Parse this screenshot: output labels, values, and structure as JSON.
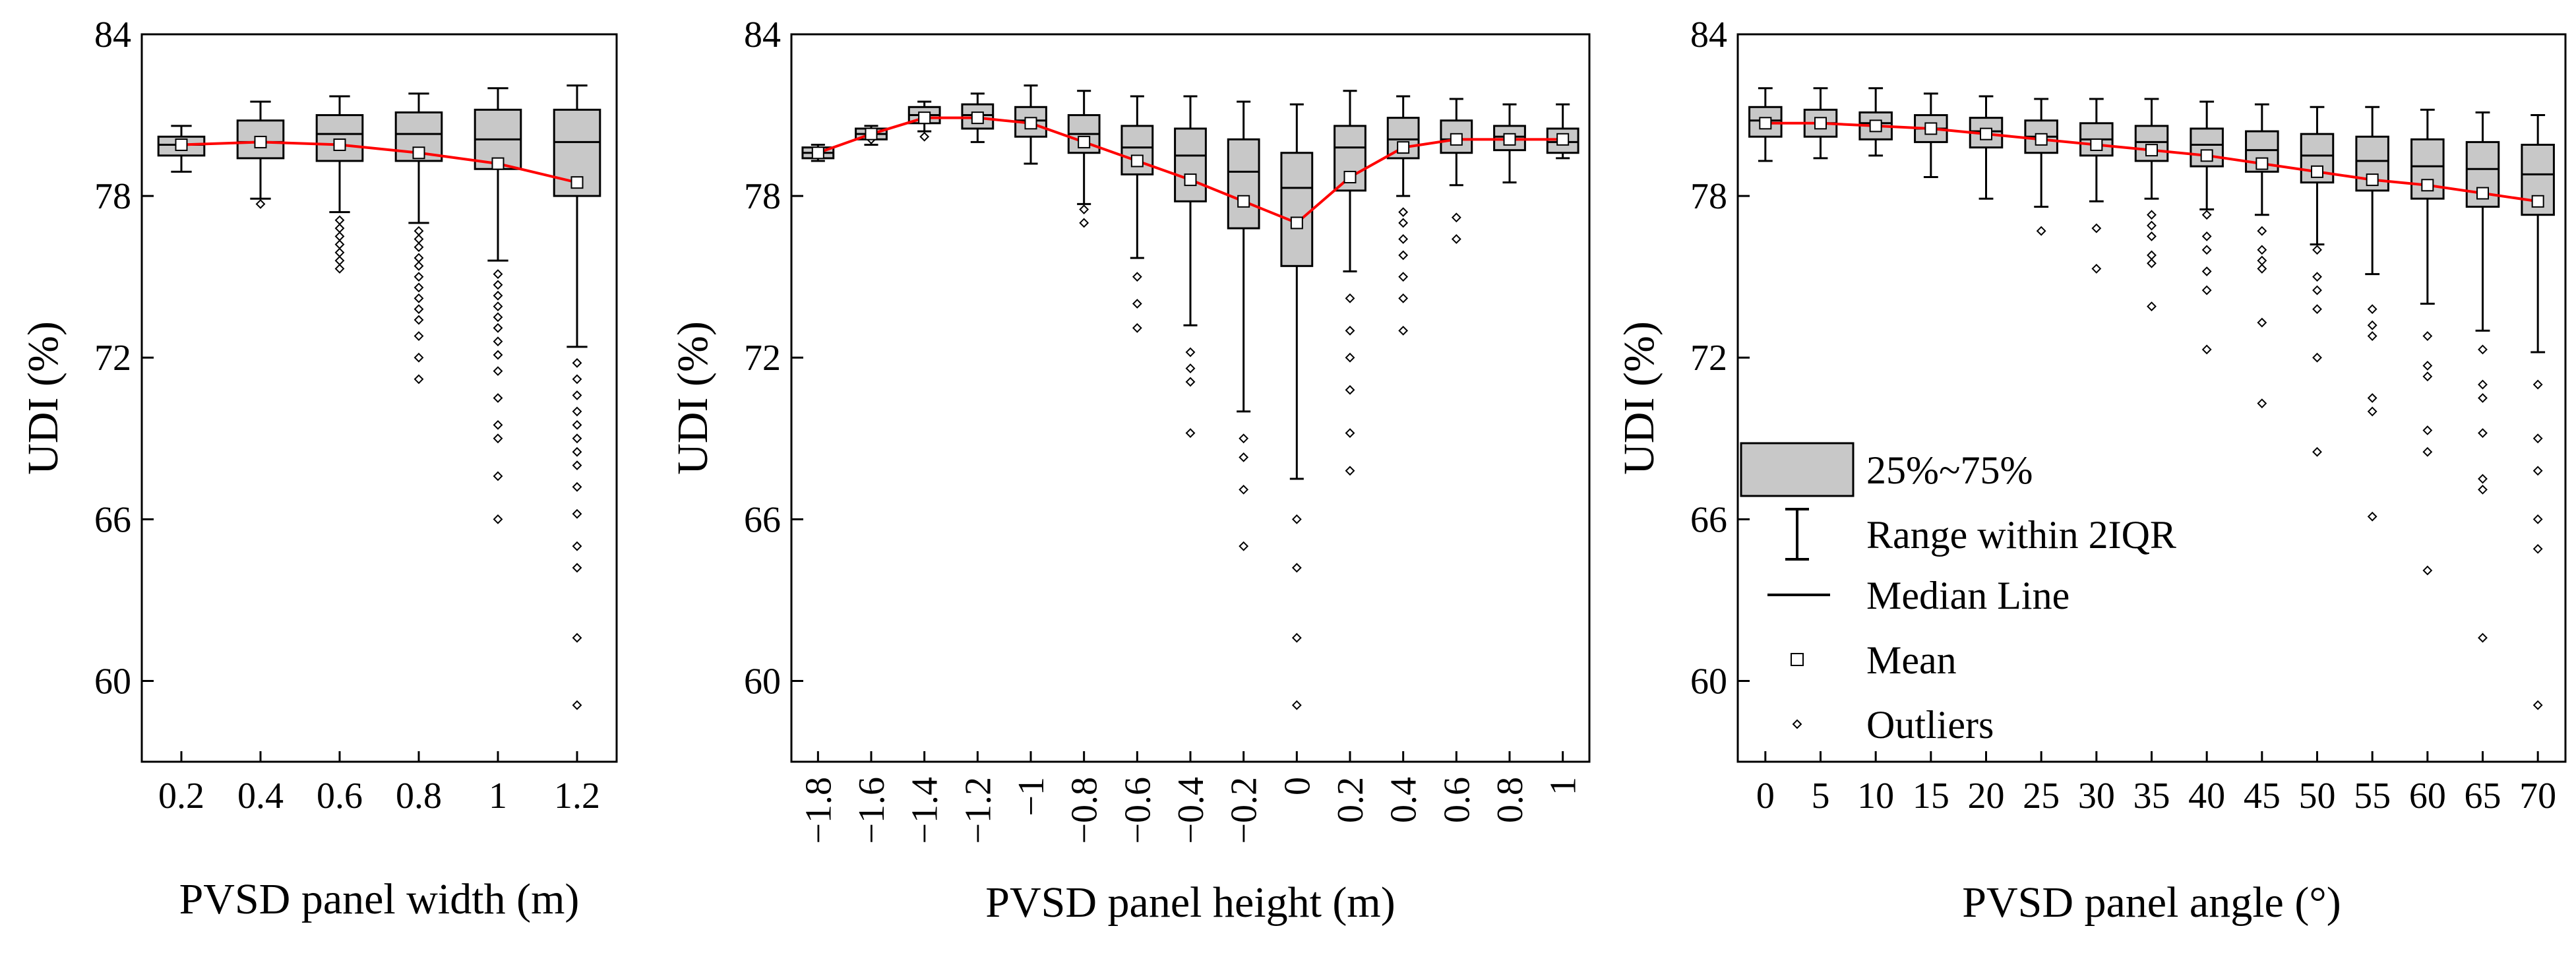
{
  "colors": {
    "box_fill": "#c8c8c8",
    "box_stroke": "#000000",
    "mean_line": "#ff0000",
    "mean_marker_fill": "#ffffff",
    "background": "#ffffff"
  },
  "legend": {
    "placement": "middle-left of third panel",
    "items": [
      {
        "symbol": "box",
        "label": "25%~75%"
      },
      {
        "symbol": "whisker",
        "label": "Range within 2IQR"
      },
      {
        "symbol": "median",
        "label": "Median Line"
      },
      {
        "symbol": "square",
        "label": "Mean"
      },
      {
        "symbol": "diamond",
        "label": "Outliers"
      }
    ]
  },
  "chart_data": [
    {
      "type": "box",
      "xlabel": "PVSD panel width (m)",
      "ylabel": "UDI (%)",
      "ylim": [
        57,
        84
      ],
      "yticks": [
        60,
        66,
        72,
        78,
        84
      ],
      "grid": false,
      "categories": [
        "0.2",
        "0.4",
        "0.6",
        "0.8",
        "1",
        "1.2"
      ],
      "tick_rotation": 0,
      "boxes": [
        {
          "q1": 79.5,
          "median": 79.9,
          "q3": 80.2,
          "mean": 79.9,
          "whisker_low": 78.9,
          "whisker_high": 80.6,
          "outliers": []
        },
        {
          "q1": 79.4,
          "median": 80.0,
          "q3": 80.8,
          "mean": 80.0,
          "whisker_low": 77.9,
          "whisker_high": 81.5,
          "outliers": [
            77.7
          ]
        },
        {
          "q1": 79.3,
          "median": 80.3,
          "q3": 81.0,
          "mean": 79.9,
          "whisker_low": 77.4,
          "whisker_high": 81.7,
          "outliers": [
            77.1,
            76.8,
            76.5,
            76.2,
            75.9,
            75.6,
            75.3
          ]
        },
        {
          "q1": 79.3,
          "median": 80.3,
          "q3": 81.1,
          "mean": 79.6,
          "whisker_low": 77.0,
          "whisker_high": 81.8,
          "outliers": [
            76.7,
            76.4,
            76.1,
            75.7,
            75.4,
            75.0,
            74.6,
            74.2,
            73.8,
            73.4,
            72.8,
            72.0,
            71.2
          ]
        },
        {
          "q1": 79.0,
          "median": 80.1,
          "q3": 81.2,
          "mean": 79.2,
          "whisker_low": 75.6,
          "whisker_high": 82.0,
          "outliers": [
            75.1,
            74.7,
            74.3,
            73.9,
            73.5,
            73.1,
            72.6,
            72.1,
            71.5,
            70.5,
            69.5,
            69.0,
            67.6,
            66.0
          ]
        },
        {
          "q1": 78.0,
          "median": 80.0,
          "q3": 81.2,
          "mean": 78.5,
          "whisker_low": 72.4,
          "whisker_high": 82.1,
          "outliers": [
            71.8,
            71.2,
            70.6,
            70.0,
            69.5,
            69.0,
            68.5,
            68.0,
            67.2,
            66.2,
            65.0,
            64.2,
            61.6,
            59.1
          ]
        }
      ]
    },
    {
      "type": "box",
      "xlabel": "PVSD panel height (m)",
      "ylabel": "UDI (%)",
      "ylim": [
        57,
        84
      ],
      "yticks": [
        60,
        66,
        72,
        78,
        84
      ],
      "grid": false,
      "categories": [
        "−1.8",
        "−1.6",
        "−1.4",
        "−1.2",
        "−1",
        "−0.8",
        "−0.6",
        "−0.4",
        "−0.2",
        "0",
        "0.2",
        "0.4",
        "0.6",
        "0.8",
        "1"
      ],
      "tick_rotation": -90,
      "boxes": [
        {
          "q1": 79.4,
          "median": 79.6,
          "q3": 79.8,
          "mean": 79.6,
          "whisker_low": 79.3,
          "whisker_high": 79.9,
          "outliers": []
        },
        {
          "q1": 80.1,
          "median": 80.3,
          "q3": 80.5,
          "mean": 80.3,
          "whisker_low": 79.9,
          "whisker_high": 80.6,
          "outliers": [
            80.1
          ]
        },
        {
          "q1": 80.7,
          "median": 81.0,
          "q3": 81.3,
          "mean": 80.9,
          "whisker_low": 80.4,
          "whisker_high": 81.5,
          "outliers": [
            80.2
          ]
        },
        {
          "q1": 80.5,
          "median": 81.0,
          "q3": 81.4,
          "mean": 80.9,
          "whisker_low": 80.0,
          "whisker_high": 81.8,
          "outliers": []
        },
        {
          "q1": 80.2,
          "median": 80.8,
          "q3": 81.3,
          "mean": 80.7,
          "whisker_low": 79.2,
          "whisker_high": 82.1,
          "outliers": []
        },
        {
          "q1": 79.6,
          "median": 80.3,
          "q3": 81.0,
          "mean": 80.0,
          "whisker_low": 77.7,
          "whisker_high": 81.9,
          "outliers": [
            77.5,
            77.0
          ]
        },
        {
          "q1": 78.8,
          "median": 79.8,
          "q3": 80.6,
          "mean": 79.3,
          "whisker_low": 75.7,
          "whisker_high": 81.7,
          "outliers": [
            75.0,
            74.0,
            73.1
          ]
        },
        {
          "q1": 77.8,
          "median": 79.5,
          "q3": 80.5,
          "mean": 78.6,
          "whisker_low": 73.2,
          "whisker_high": 81.7,
          "outliers": [
            72.2,
            71.6,
            71.1,
            69.2
          ]
        },
        {
          "q1": 76.8,
          "median": 78.9,
          "q3": 80.1,
          "mean": 77.8,
          "whisker_low": 70.0,
          "whisker_high": 81.5,
          "outliers": [
            69.0,
            68.3,
            67.1,
            65.0
          ]
        },
        {
          "q1": 75.4,
          "median": 78.3,
          "q3": 79.6,
          "mean": 77.0,
          "whisker_low": 67.5,
          "whisker_high": 81.4,
          "outliers": [
            66.0,
            64.2,
            61.6,
            59.1
          ]
        },
        {
          "q1": 78.2,
          "median": 79.8,
          "q3": 80.6,
          "mean": 78.7,
          "whisker_low": 75.2,
          "whisker_high": 81.9,
          "outliers": [
            74.2,
            73.0,
            72.0,
            70.8,
            69.2,
            67.8
          ]
        },
        {
          "q1": 79.4,
          "median": 80.1,
          "q3": 80.9,
          "mean": 79.8,
          "whisker_low": 78.0,
          "whisker_high": 81.7,
          "outliers": [
            77.4,
            77.0,
            76.4,
            75.8,
            75.0,
            74.2,
            73.0
          ]
        },
        {
          "q1": 79.6,
          "median": 80.1,
          "q3": 80.8,
          "mean": 80.1,
          "whisker_low": 78.4,
          "whisker_high": 81.6,
          "outliers": [
            77.2,
            76.4
          ]
        },
        {
          "q1": 79.7,
          "median": 80.2,
          "q3": 80.6,
          "mean": 80.1,
          "whisker_low": 78.5,
          "whisker_high": 81.4,
          "outliers": []
        },
        {
          "q1": 79.6,
          "median": 80.0,
          "q3": 80.5,
          "mean": 80.1,
          "whisker_low": 79.4,
          "whisker_high": 81.4,
          "outliers": []
        }
      ]
    },
    {
      "type": "box",
      "xlabel": "PVSD panel angle (°)",
      "ylabel": "UDI (%)",
      "ylim": [
        57,
        84
      ],
      "yticks": [
        60,
        66,
        72,
        78,
        84
      ],
      "grid": false,
      "categories": [
        "0",
        "5",
        "10",
        "15",
        "20",
        "25",
        "30",
        "35",
        "40",
        "45",
        "50",
        "55",
        "60",
        "65",
        "70"
      ],
      "tick_rotation": 0,
      "boxes": [
        {
          "q1": 80.2,
          "median": 80.8,
          "q3": 81.3,
          "mean": 80.7,
          "whisker_low": 79.3,
          "whisker_high": 82.0,
          "outliers": []
        },
        {
          "q1": 80.2,
          "median": 80.7,
          "q3": 81.2,
          "mean": 80.7,
          "whisker_low": 79.4,
          "whisker_high": 82.0,
          "outliers": []
        },
        {
          "q1": 80.1,
          "median": 80.7,
          "q3": 81.1,
          "mean": 80.6,
          "whisker_low": 79.5,
          "whisker_high": 82.0,
          "outliers": []
        },
        {
          "q1": 80.0,
          "median": 80.5,
          "q3": 81.0,
          "mean": 80.5,
          "whisker_low": 78.7,
          "whisker_high": 81.8,
          "outliers": []
        },
        {
          "q1": 79.8,
          "median": 80.4,
          "q3": 80.9,
          "mean": 80.3,
          "whisker_low": 77.9,
          "whisker_high": 81.7,
          "outliers": []
        },
        {
          "q1": 79.6,
          "median": 80.2,
          "q3": 80.8,
          "mean": 80.1,
          "whisker_low": 77.6,
          "whisker_high": 81.6,
          "outliers": [
            76.7
          ]
        },
        {
          "q1": 79.5,
          "median": 80.1,
          "q3": 80.7,
          "mean": 79.9,
          "whisker_low": 77.8,
          "whisker_high": 81.6,
          "outliers": [
            76.8,
            75.3
          ]
        },
        {
          "q1": 79.3,
          "median": 80.0,
          "q3": 80.6,
          "mean": 79.7,
          "whisker_low": 77.9,
          "whisker_high": 81.6,
          "outliers": [
            77.3,
            76.9,
            76.5,
            75.8,
            75.5,
            73.9
          ]
        },
        {
          "q1": 79.1,
          "median": 79.9,
          "q3": 80.5,
          "mean": 79.5,
          "whisker_low": 77.5,
          "whisker_high": 81.5,
          "outliers": [
            77.3,
            76.5,
            76.0,
            75.2,
            74.5,
            72.3
          ]
        },
        {
          "q1": 78.9,
          "median": 79.7,
          "q3": 80.4,
          "mean": 79.2,
          "whisker_low": 77.3,
          "whisker_high": 81.4,
          "outliers": [
            76.7,
            76.0,
            75.6,
            75.3,
            73.3,
            70.3
          ]
        },
        {
          "q1": 78.5,
          "median": 79.5,
          "q3": 80.3,
          "mean": 78.9,
          "whisker_low": 76.2,
          "whisker_high": 81.3,
          "outliers": [
            76.0,
            75.0,
            74.5,
            73.8,
            72.0,
            68.5
          ]
        },
        {
          "q1": 78.2,
          "median": 79.3,
          "q3": 80.2,
          "mean": 78.6,
          "whisker_low": 75.1,
          "whisker_high": 81.3,
          "outliers": [
            73.8,
            73.2,
            72.8,
            70.5,
            70.0,
            66.1
          ]
        },
        {
          "q1": 77.9,
          "median": 79.1,
          "q3": 80.1,
          "mean": 78.4,
          "whisker_low": 74.0,
          "whisker_high": 81.2,
          "outliers": [
            72.8,
            71.7,
            71.3,
            69.3,
            68.5,
            64.1
          ]
        },
        {
          "q1": 77.6,
          "median": 79.0,
          "q3": 80.0,
          "mean": 78.1,
          "whisker_low": 73.0,
          "whisker_high": 81.1,
          "outliers": [
            72.3,
            71.0,
            70.5,
            69.2,
            67.5,
            67.1,
            61.6
          ]
        },
        {
          "q1": 77.3,
          "median": 78.8,
          "q3": 79.9,
          "mean": 77.8,
          "whisker_low": 72.2,
          "whisker_high": 81.0,
          "outliers": [
            71.0,
            69.0,
            67.8,
            66.0,
            64.9,
            59.1
          ]
        }
      ]
    }
  ]
}
